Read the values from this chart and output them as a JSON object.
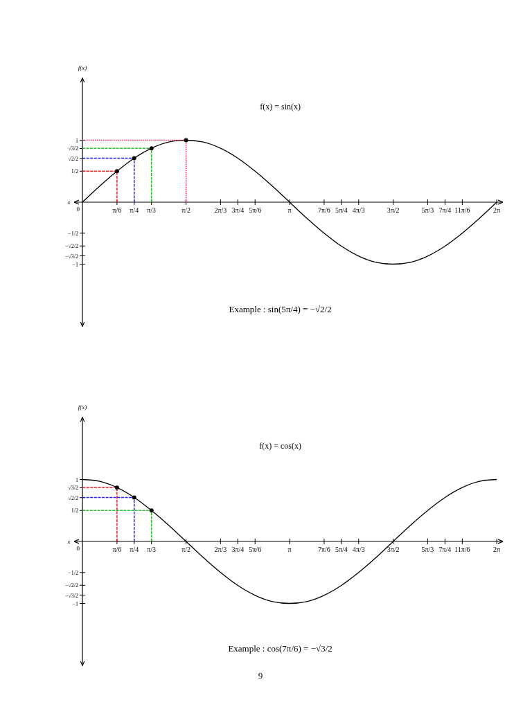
{
  "chart_data": [
    {
      "type": "line",
      "title": "f(x) = sin(x)",
      "xlabel": "x",
      "ylabel": "f(x)",
      "annotations": [
        "Example : sin(5π/4) = −√2/2",
        "0"
      ],
      "xlim": [
        -0.12,
        6.37
      ],
      "ylim": [
        -2,
        2
      ],
      "grid": false,
      "xticks": [
        {
          "value": 0.524,
          "label": "π/6"
        },
        {
          "value": 0.785,
          "label": "π/4"
        },
        {
          "value": 1.047,
          "label": "π/3"
        },
        {
          "value": 1.571,
          "label": "π/2"
        },
        {
          "value": 2.094,
          "label": "2π/3"
        },
        {
          "value": 2.356,
          "label": "3π/4"
        },
        {
          "value": 2.618,
          "label": "5π/6"
        },
        {
          "value": 3.142,
          "label": "π"
        },
        {
          "value": 3.665,
          "label": "7π/6"
        },
        {
          "value": 3.927,
          "label": "5π/4"
        },
        {
          "value": 4.189,
          "label": "4π/3"
        },
        {
          "value": 4.712,
          "label": "3π/2"
        },
        {
          "value": 5.236,
          "label": "5π/3"
        },
        {
          "value": 5.498,
          "label": "7π/4"
        },
        {
          "value": 5.76,
          "label": "11π/6"
        },
        {
          "value": 6.283,
          "label": "2π"
        }
      ],
      "yticks": [
        {
          "value": 1,
          "label": "1"
        },
        {
          "value": 0.866,
          "label": "√3/2"
        },
        {
          "value": 0.707,
          "label": "√2/2"
        },
        {
          "value": 0.5,
          "label": "1/2"
        },
        {
          "value": -0.5,
          "label": "−1/2"
        },
        {
          "value": -0.707,
          "label": "−√2/2"
        },
        {
          "value": -0.866,
          "label": "−√3/2"
        },
        {
          "value": -1,
          "label": "−1"
        }
      ],
      "series": [
        {
          "type": "line",
          "color": "#000000",
          "marker": "none",
          "line_style": "solid",
          "x": [
            0,
            0.262,
            0.524,
            0.785,
            1.047,
            1.309,
            1.571,
            1.833,
            2.094,
            2.356,
            2.618,
            2.88,
            3.142,
            3.403,
            3.665,
            3.927,
            4.189,
            4.451,
            4.712,
            4.974,
            5.236,
            5.498,
            5.76,
            6.021,
            6.283
          ],
          "values": [
            0,
            0.26,
            0.5,
            0.71,
            0.87,
            0.97,
            1,
            0.97,
            0.87,
            0.71,
            0.5,
            0.26,
            0,
            -0.26,
            -0.5,
            -0.71,
            -0.87,
            -0.97,
            -1,
            -0.97,
            -0.87,
            -0.71,
            -0.5,
            -0.26,
            0
          ]
        },
        {
          "type": "line",
          "color": "#ff2020",
          "marker": "none",
          "line_style": "dashed",
          "x": [
            0,
            0.524,
            0.524
          ],
          "values": [
            0.5,
            0.5,
            0
          ]
        },
        {
          "type": "line",
          "color": "#2020ff",
          "marker": "none",
          "line_style": "dashed",
          "x": [
            0,
            0.785,
            0.785
          ],
          "values": [
            0.71,
            0.71,
            0
          ]
        },
        {
          "type": "line",
          "color": "#20c020",
          "marker": "none",
          "line_style": "dashed",
          "x": [
            0,
            1.047,
            1.047
          ],
          "values": [
            0.87,
            0.87,
            0
          ]
        },
        {
          "type": "line",
          "color": "#ff2050",
          "marker": "none",
          "line_style": "dotted",
          "x": [
            0,
            1.571,
            1.571
          ],
          "values": [
            1,
            1,
            0
          ]
        },
        {
          "type": "scatter",
          "color": "#000000",
          "marker": "circle",
          "x": [
            0.524,
            0.785,
            1.047,
            1.571
          ],
          "values": [
            0.5,
            0.71,
            0.87,
            1
          ]
        }
      ]
    },
    {
      "type": "line",
      "title": "f(x) = cos(x)",
      "xlabel": "x",
      "ylabel": "f(x)",
      "annotations": [
        "Example : cos(7π/6) = −√3/2",
        "0",
        "9"
      ],
      "xlim": [
        -0.12,
        6.37
      ],
      "ylim": [
        -2,
        2
      ],
      "grid": false,
      "xticks": [
        {
          "value": 0.524,
          "label": "π/6"
        },
        {
          "value": 0.785,
          "label": "π/4"
        },
        {
          "value": 1.047,
          "label": "π/3"
        },
        {
          "value": 1.571,
          "label": "π/2"
        },
        {
          "value": 2.094,
          "label": "2π/3"
        },
        {
          "value": 2.356,
          "label": "3π/4"
        },
        {
          "value": 2.618,
          "label": "5π/6"
        },
        {
          "value": 3.142,
          "label": "π"
        },
        {
          "value": 3.665,
          "label": "7π/6"
        },
        {
          "value": 3.927,
          "label": "5π/4"
        },
        {
          "value": 4.189,
          "label": "4π/3"
        },
        {
          "value": 4.712,
          "label": "3π/2"
        },
        {
          "value": 5.236,
          "label": "5π/3"
        },
        {
          "value": 5.498,
          "label": "7π/4"
        },
        {
          "value": 5.76,
          "label": "11π/6"
        },
        {
          "value": 6.283,
          "label": "2π"
        }
      ],
      "yticks": [
        {
          "value": 1,
          "label": "1"
        },
        {
          "value": 0.866,
          "label": "√3/2"
        },
        {
          "value": 0.707,
          "label": "√2/2"
        },
        {
          "value": 0.5,
          "label": "1/2"
        },
        {
          "value": -0.5,
          "label": "−1/2"
        },
        {
          "value": -0.707,
          "label": "−√2/2"
        },
        {
          "value": -0.866,
          "label": "−√3/2"
        },
        {
          "value": -1,
          "label": "−1"
        }
      ],
      "series": [
        {
          "type": "line",
          "color": "#000000",
          "marker": "none",
          "line_style": "solid",
          "x": [
            0,
            0.262,
            0.524,
            0.785,
            1.047,
            1.309,
            1.571,
            1.833,
            2.094,
            2.356,
            2.618,
            2.88,
            3.142,
            3.403,
            3.665,
            3.927,
            4.189,
            4.451,
            4.712,
            4.974,
            5.236,
            5.498,
            5.76,
            6.021,
            6.283
          ],
          "values": [
            1,
            0.97,
            0.87,
            0.71,
            0.5,
            0.26,
            0,
            -0.26,
            -0.5,
            -0.71,
            -0.87,
            -0.97,
            -1,
            -0.97,
            -0.87,
            -0.71,
            -0.5,
            -0.26,
            0,
            0.26,
            0.5,
            0.71,
            0.87,
            0.97,
            1
          ]
        },
        {
          "type": "line",
          "color": "#ff2020",
          "marker": "none",
          "line_style": "dashed",
          "x": [
            0,
            0.524,
            0.524
          ],
          "values": [
            0.87,
            0.87,
            0
          ]
        },
        {
          "type": "line",
          "color": "#2020ff",
          "marker": "none",
          "line_style": "dashed",
          "x": [
            0,
            0.785,
            0.785
          ],
          "values": [
            0.71,
            0.71,
            0
          ]
        },
        {
          "type": "line",
          "color": "#20c020",
          "marker": "none",
          "line_style": "dashed",
          "x": [
            0,
            1.047,
            1.047
          ],
          "values": [
            0.5,
            0.5,
            0
          ]
        },
        {
          "type": "scatter",
          "color": "#000000",
          "marker": "circle",
          "x": [
            0.524,
            0.785,
            1.047
          ],
          "values": [
            0.87,
            0.71,
            0.5
          ]
        }
      ]
    }
  ]
}
